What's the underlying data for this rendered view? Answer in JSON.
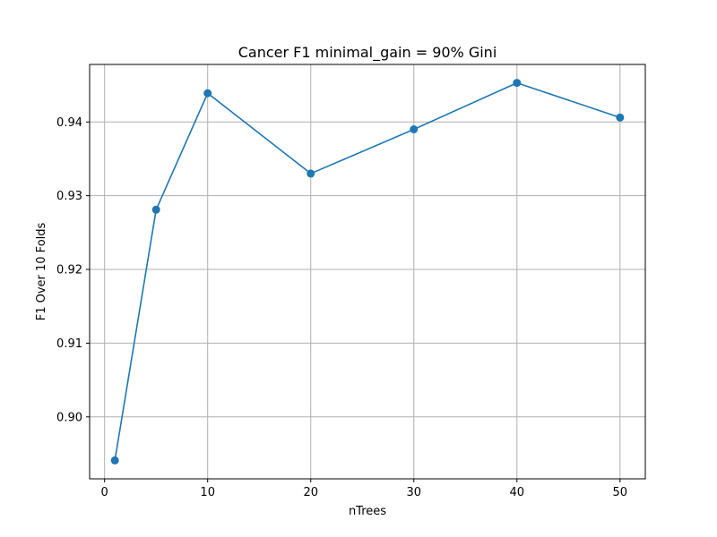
{
  "chart_data": {
    "type": "line",
    "title": "Cancer F1 minimal_gain = 90% Gini",
    "xlabel": "nTrees",
    "ylabel": "F1 Over 10 Folds",
    "x": [
      1,
      5,
      10,
      20,
      30,
      40,
      50
    ],
    "series": [
      {
        "values": [
          0.8941,
          0.9281,
          0.9439,
          0.933,
          0.939,
          0.9453,
          0.9406
        ]
      }
    ],
    "xlim": [
      -1.45,
      52.45
    ],
    "ylim": [
      0.8916,
      0.9478
    ],
    "xticks": [
      0,
      10,
      20,
      30,
      40,
      50
    ],
    "xtick_labels": [
      "0",
      "10",
      "20",
      "30",
      "40",
      "50"
    ],
    "yticks": [
      0.9,
      0.91,
      0.92,
      0.93,
      0.94
    ],
    "ytick_labels": [
      "0.90",
      "0.91",
      "0.92",
      "0.93",
      "0.94"
    ],
    "grid": true,
    "markers": true,
    "colors": {
      "series": "#1f77b4",
      "grid": "#b0b0b0",
      "axis": "#000000"
    }
  }
}
